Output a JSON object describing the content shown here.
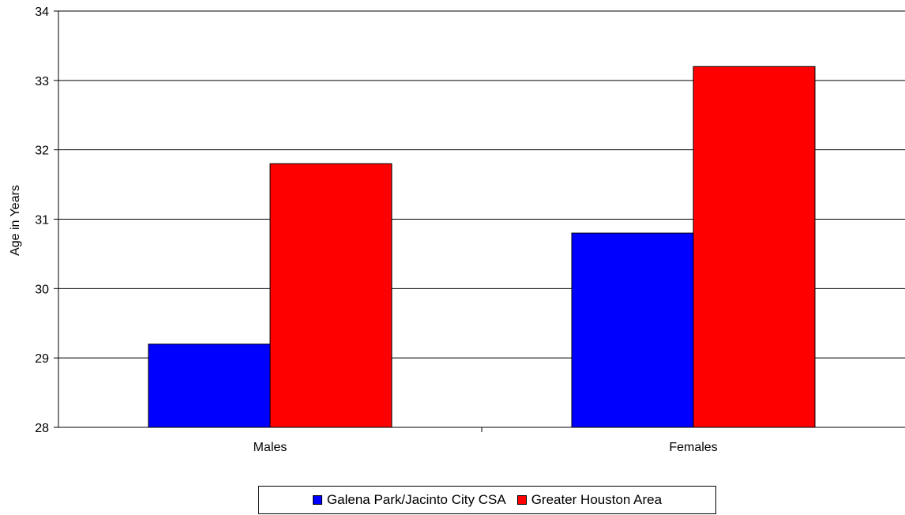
{
  "chart_data": {
    "type": "bar",
    "title": "",
    "xlabel": "",
    "ylabel": "Age in Years",
    "ylim": [
      28,
      34
    ],
    "yticks": [
      28,
      29,
      30,
      31,
      32,
      33,
      34
    ],
    "grid": true,
    "legend_position": "bottom",
    "categories": [
      "Males",
      "Females"
    ],
    "series": [
      {
        "name": "Galena Park/Jacinto City CSA",
        "color": "#0000ff",
        "values": [
          29.2,
          30.8
        ]
      },
      {
        "name": "Greater Houston Area",
        "color": "#ff0000",
        "values": [
          31.8,
          33.2
        ]
      }
    ]
  }
}
